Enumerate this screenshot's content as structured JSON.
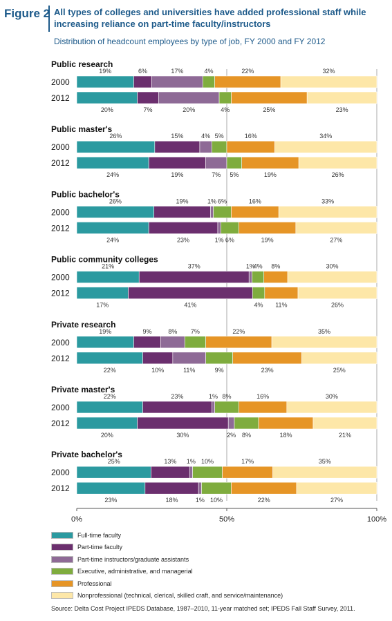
{
  "figure_label": "Figure 2",
  "title": "All types of colleges and universities have added professional staff while increasing reliance on part-time faculty/instructors",
  "subtitle": "Distribution of headcount employees by type of job, FY 2000 and FY 2012",
  "source": "Source: Delta Cost Project IPEDS Database, 1987–2010, 11-year matched set; IPEDS Fall Staff Survey, 2011.",
  "chart_data": {
    "type": "bar",
    "orientation": "horizontal",
    "stacked": true,
    "xlim": [
      0,
      100
    ],
    "x_tick_labels": [
      "0%",
      "50%",
      "100%"
    ],
    "series": [
      {
        "name": "Full-time faculty",
        "color": "#2b9aa0"
      },
      {
        "name": "Part-time faculty",
        "color": "#6b2f6e"
      },
      {
        "name": "Part-time instructors/graduate assistants",
        "color": "#8e6a96"
      },
      {
        "name": "Executive, administrative, and managerial",
        "color": "#7fac3e"
      },
      {
        "name": "Professional",
        "color": "#e69526"
      },
      {
        "name": "Nonprofessional (technical, clerical, skilled craft, and service/maintenance)",
        "color": "#fde7a8"
      }
    ],
    "groups": [
      {
        "name": "Public research",
        "bars": [
          {
            "year": "2000",
            "values": [
              19,
              6,
              17,
              4,
              22,
              32
            ],
            "labels": [
              "19%",
              "6%",
              "17%",
              "4%",
              "22%",
              "32%"
            ]
          },
          {
            "year": "2012",
            "values": [
              20,
              7,
              20,
              4,
              25,
              23
            ],
            "labels": [
              "20%",
              "7%",
              "20%",
              "4%",
              "25%",
              "23%"
            ]
          }
        ]
      },
      {
        "name": "Public master's",
        "bars": [
          {
            "year": "2000",
            "values": [
              26,
              15,
              4,
              5,
              16,
              34
            ],
            "labels": [
              "26%",
              "15%",
              "4%",
              "5%",
              "16%",
              "34%"
            ]
          },
          {
            "year": "2012",
            "values": [
              24,
              19,
              7,
              5,
              19,
              26
            ],
            "labels": [
              "24%",
              "19%",
              "7%",
              "5%",
              "19%",
              "26%"
            ]
          }
        ]
      },
      {
        "name": "Public bachelor's",
        "bars": [
          {
            "year": "2000",
            "values": [
              26,
              19,
              1,
              6,
              16,
              33
            ],
            "labels": [
              "26%",
              "19%",
              "1%",
              "6%",
              "16%",
              "33%"
            ]
          },
          {
            "year": "2012",
            "values": [
              24,
              23,
              1,
              6,
              19,
              27
            ],
            "labels": [
              "24%",
              "23%",
              "1%",
              "6%",
              "19%",
              "27%"
            ]
          }
        ]
      },
      {
        "name": "Public community colleges",
        "bars": [
          {
            "year": "2000",
            "values": [
              21,
              37,
              1,
              4,
              8,
              30
            ],
            "labels": [
              "21%",
              "37%",
              "1%",
              "4%",
              "8%",
              "30%"
            ]
          },
          {
            "year": "2012",
            "values": [
              17,
              41,
              0,
              4,
              11,
              26
            ],
            "labels": [
              "17%",
              "41%",
              "",
              "4%",
              "11%",
              "26%"
            ]
          }
        ]
      },
      {
        "name": "Private research",
        "bars": [
          {
            "year": "2000",
            "values": [
              19,
              9,
              8,
              7,
              22,
              35
            ],
            "labels": [
              "19%",
              "9%",
              "8%",
              "7%",
              "22%",
              "35%"
            ]
          },
          {
            "year": "2012",
            "values": [
              22,
              10,
              11,
              9,
              23,
              25
            ],
            "labels": [
              "22%",
              "10%",
              "11%",
              "9%",
              "23%",
              "25%"
            ]
          }
        ]
      },
      {
        "name": "Private master's",
        "bars": [
          {
            "year": "2000",
            "values": [
              22,
              23,
              1,
              8,
              16,
              30
            ],
            "labels": [
              "22%",
              "23%",
              "1%",
              "8%",
              "16%",
              "30%"
            ]
          },
          {
            "year": "2012",
            "values": [
              20,
              30,
              2,
              8,
              18,
              21
            ],
            "labels": [
              "20%",
              "30%",
              "2%",
              "8%",
              "18%",
              "21%"
            ]
          }
        ]
      },
      {
        "name": "Private bachelor's",
        "bars": [
          {
            "year": "2000",
            "values": [
              25,
              13,
              1,
              10,
              17,
              35
            ],
            "labels": [
              "25%",
              "13%",
              "1%",
              "10%",
              "17%",
              "35%"
            ]
          },
          {
            "year": "2012",
            "values": [
              23,
              18,
              1,
              10,
              22,
              27
            ],
            "labels": [
              "23%",
              "18%",
              "1%",
              "10%",
              "22%",
              "27%"
            ]
          }
        ]
      }
    ]
  }
}
